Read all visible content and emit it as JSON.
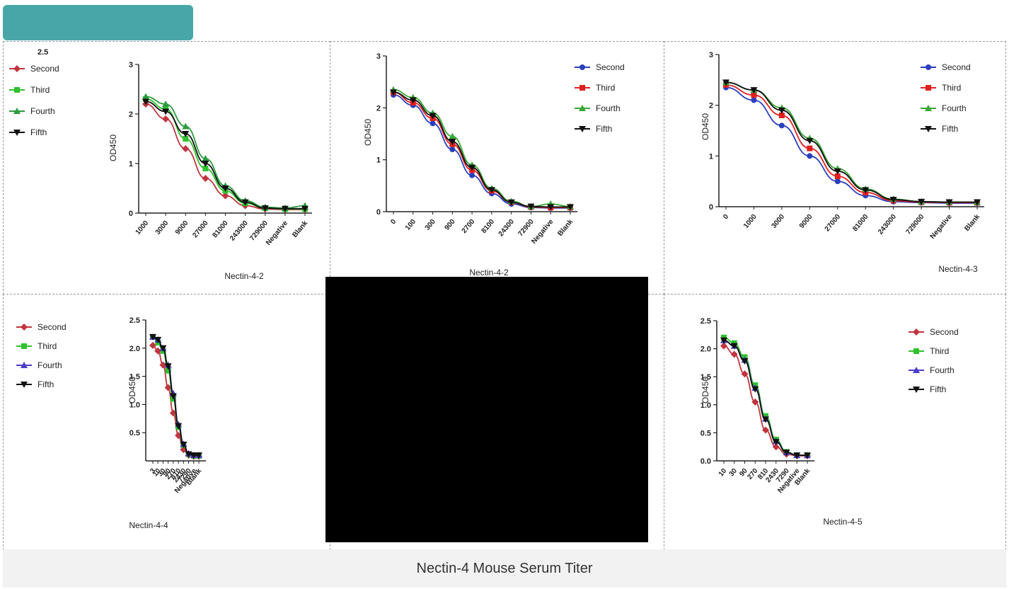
{
  "caption": "Nectin-4 Mouse Serum Titer",
  "colors": {
    "accent_tab": "#48a6a8",
    "caption_bg": "#f2f2f2",
    "Second": "#c0343f",
    "Third": "#2fc12f",
    "Fourth": "#2b9c3f",
    "Fifth": "#111111",
    "Second_blue": "#2a3fbf",
    "Third_red": "#e02020",
    "Fourth_green": "#36a834",
    "Fifth_black": "#111111",
    "Fourth_purple": "#4a3ec8"
  },
  "chart_data": [
    {
      "panel": "p1",
      "type": "line",
      "xlabel": "Nectin-4-2",
      "ylabel": "OD450",
      "ylim": [
        0,
        3
      ],
      "yticks": [
        "0",
        "1",
        "2",
        "3"
      ],
      "categories": [
        "1000",
        "3000",
        "9000",
        "27000",
        "81000",
        "243000",
        "729000",
        "Negative",
        "Blank"
      ],
      "legend": [
        {
          "name": "Second",
          "color": "#c0343f",
          "marker": "diamond"
        },
        {
          "name": "Third",
          "color": "#2fc12f",
          "marker": "square"
        },
        {
          "name": "Fourth",
          "color": "#2b9c3f",
          "marker": "triangle"
        },
        {
          "name": "Fifth",
          "color": "#111111",
          "marker": "triangle-down"
        }
      ],
      "legend_extra_tick": "2.5",
      "series": [
        {
          "name": "Second",
          "values": [
            2.2,
            1.9,
            1.3,
            0.7,
            0.35,
            0.15,
            0.08,
            0.07,
            0.07
          ]
        },
        {
          "name": "Third",
          "values": [
            2.3,
            2.1,
            1.5,
            0.9,
            0.45,
            0.2,
            0.1,
            0.08,
            0.08
          ]
        },
        {
          "name": "Fourth",
          "values": [
            2.35,
            2.2,
            1.75,
            1.1,
            0.55,
            0.25,
            0.12,
            0.1,
            0.15
          ]
        },
        {
          "name": "Fifth",
          "values": [
            2.25,
            2.05,
            1.6,
            1.0,
            0.5,
            0.22,
            0.1,
            0.09,
            0.09
          ]
        }
      ]
    },
    {
      "panel": "p2",
      "type": "line",
      "xlabel": "Nectin-4-2",
      "ylabel": "OD450",
      "ylim": [
        0,
        3
      ],
      "yticks": [
        "0",
        "1",
        "2",
        "3"
      ],
      "categories": [
        "0",
        "100",
        "300",
        "900",
        "2700",
        "8100",
        "24300",
        "72900",
        "Negative",
        "Blank"
      ],
      "legend": [
        {
          "name": "Second",
          "color": "#2a3fbf",
          "marker": "circle"
        },
        {
          "name": "Third",
          "color": "#e02020",
          "marker": "square"
        },
        {
          "name": "Fourth",
          "color": "#36a834",
          "marker": "triangle"
        },
        {
          "name": "Fifth",
          "color": "#111111",
          "marker": "triangle-down"
        }
      ],
      "series": [
        {
          "name": "Second",
          "values": [
            2.25,
            2.05,
            1.7,
            1.2,
            0.7,
            0.35,
            0.15,
            0.08,
            0.07,
            0.07
          ]
        },
        {
          "name": "Third",
          "values": [
            2.3,
            2.1,
            1.8,
            1.3,
            0.8,
            0.4,
            0.18,
            0.09,
            0.08,
            0.08
          ]
        },
        {
          "name": "Fourth",
          "values": [
            2.35,
            2.2,
            1.9,
            1.45,
            0.9,
            0.45,
            0.2,
            0.1,
            0.15,
            0.1
          ]
        },
        {
          "name": "Fifth",
          "values": [
            2.3,
            2.15,
            1.85,
            1.35,
            0.85,
            0.42,
            0.18,
            0.1,
            0.09,
            0.09
          ]
        }
      ]
    },
    {
      "panel": "p3",
      "type": "line",
      "xlabel": "Nectin-4-3",
      "ylabel": "OD450",
      "ylim": [
        0,
        3
      ],
      "yticks": [
        "0",
        "1",
        "2",
        "3"
      ],
      "categories": [
        "0",
        "1000",
        "3000",
        "9000",
        "27000",
        "81000",
        "243000",
        "729000",
        "Negative",
        "Blank"
      ],
      "legend": [
        {
          "name": "Second",
          "color": "#2a3fbf",
          "marker": "circle"
        },
        {
          "name": "Third",
          "color": "#e02020",
          "marker": "square"
        },
        {
          "name": "Fourth",
          "color": "#36a834",
          "marker": "triangle"
        },
        {
          "name": "Fifth",
          "color": "#111111",
          "marker": "triangle-down"
        }
      ],
      "series": [
        {
          "name": "Second",
          "values": [
            2.35,
            2.1,
            1.6,
            1.0,
            0.5,
            0.22,
            0.1,
            0.08,
            0.07,
            0.07
          ]
        },
        {
          "name": "Third",
          "values": [
            2.4,
            2.2,
            1.8,
            1.15,
            0.6,
            0.28,
            0.12,
            0.09,
            0.08,
            0.08
          ]
        },
        {
          "name": "Fourth",
          "values": [
            2.45,
            2.3,
            1.95,
            1.35,
            0.75,
            0.35,
            0.15,
            0.1,
            0.09,
            0.09
          ]
        },
        {
          "name": "Fifth",
          "values": [
            2.45,
            2.3,
            1.9,
            1.3,
            0.7,
            0.33,
            0.14,
            0.1,
            0.09,
            0.09
          ]
        }
      ]
    },
    {
      "panel": "p4",
      "type": "line",
      "xlabel": "Nectin-4-4",
      "ylabel": "OD450",
      "ylim": [
        0,
        2.5
      ],
      "yticks": [
        "0.5",
        "1.0",
        "1.5",
        "2.0",
        "2.5"
      ],
      "categories": [
        "3",
        "10",
        "30",
        "90",
        "270",
        "810",
        "2430",
        "7290",
        "Negative",
        "Blank"
      ],
      "legend": [
        {
          "name": "Second",
          "color": "#c0343f",
          "marker": "diamond"
        },
        {
          "name": "Third",
          "color": "#2fc12f",
          "marker": "square"
        },
        {
          "name": "Fourth",
          "color": "#4a3ec8",
          "marker": "triangle"
        },
        {
          "name": "Fifth",
          "color": "#111111",
          "marker": "triangle-down"
        }
      ],
      "series": [
        {
          "name": "Second",
          "values": [
            2.05,
            1.95,
            1.7,
            1.3,
            0.85,
            0.45,
            0.2,
            0.1,
            0.08,
            0.08
          ]
        },
        {
          "name": "Third",
          "values": [
            2.2,
            2.1,
            1.95,
            1.6,
            1.1,
            0.6,
            0.28,
            0.12,
            0.09,
            0.09
          ]
        },
        {
          "name": "Fourth",
          "values": [
            2.2,
            2.15,
            2.0,
            1.7,
            1.2,
            0.65,
            0.3,
            0.13,
            0.1,
            0.1
          ]
        },
        {
          "name": "Fifth",
          "values": [
            2.2,
            2.15,
            2.0,
            1.68,
            1.15,
            0.62,
            0.29,
            0.12,
            0.1,
            0.1
          ]
        }
      ]
    },
    {
      "panel": "p5",
      "type": "line",
      "xlabel": "Nectin-4-5",
      "ylabel": "OD450",
      "ylim": [
        0,
        2.5
      ],
      "yticks": [
        "0.0",
        "0.5",
        "1.0",
        "1.5",
        "2.0",
        "2.5"
      ],
      "categories": [
        "10",
        "30",
        "90",
        "270",
        "810",
        "2430",
        "7290",
        "Negative",
        "Blank"
      ],
      "legend": [
        {
          "name": "Second",
          "color": "#c0343f",
          "marker": "diamond"
        },
        {
          "name": "Third",
          "color": "#2fc12f",
          "marker": "square"
        },
        {
          "name": "Fourth",
          "color": "#4a3ec8",
          "marker": "triangle"
        },
        {
          "name": "Fifth",
          "color": "#111111",
          "marker": "triangle-down"
        }
      ],
      "series": [
        {
          "name": "Second",
          "values": [
            2.05,
            1.9,
            1.55,
            1.05,
            0.55,
            0.25,
            0.12,
            0.09,
            0.09
          ]
        },
        {
          "name": "Third",
          "values": [
            2.2,
            2.1,
            1.85,
            1.35,
            0.8,
            0.38,
            0.16,
            0.1,
            0.1
          ]
        },
        {
          "name": "Fourth",
          "values": [
            2.15,
            2.05,
            1.8,
            1.3,
            0.75,
            0.35,
            0.15,
            0.1,
            0.1
          ]
        },
        {
          "name": "Fifth",
          "values": [
            2.15,
            2.05,
            1.78,
            1.28,
            0.74,
            0.34,
            0.15,
            0.1,
            0.1
          ]
        }
      ]
    }
  ]
}
